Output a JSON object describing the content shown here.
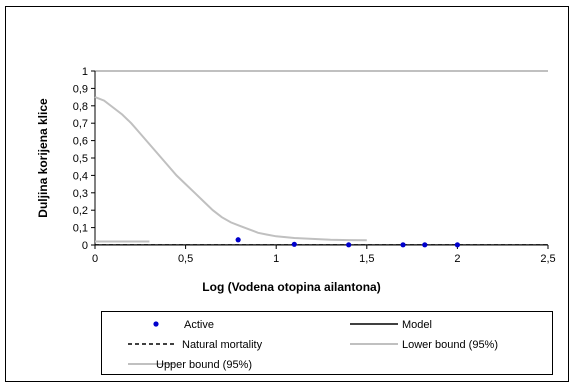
{
  "chart_data": {
    "type": "scatter",
    "xlabel": "Log (Vodena otopina ailantona)",
    "ylabel": "Duljina korijena klice",
    "xlim": [
      0,
      2.5
    ],
    "ylim": [
      0,
      1
    ],
    "x_ticks": [
      "0",
      "0,5",
      "1",
      "1,5",
      "2",
      "2,5"
    ],
    "y_ticks": [
      "0",
      "0,1",
      "0,2",
      "0,3",
      "0,4",
      "0,5",
      "0,6",
      "0,7",
      "0,8",
      "0,9",
      "1"
    ],
    "grid": "horizontal line at y=1",
    "legend_position": "bottom",
    "series": [
      {
        "name": "Active",
        "kind": "points",
        "color": "#0000cc",
        "x": [
          0.79,
          1.1,
          1.4,
          1.7,
          1.82,
          2.0
        ],
        "y": [
          0.03,
          0.004,
          0.001,
          0.001,
          0.001,
          0.001
        ]
      },
      {
        "name": "Model",
        "kind": "line",
        "color": "#000000",
        "x": [
          0,
          2.5
        ],
        "y": [
          0.001,
          0.001
        ]
      },
      {
        "name": "Natural mortality",
        "kind": "dashed-line",
        "color": "#000000",
        "x": [
          0,
          2.5
        ],
        "y": [
          0.001,
          0.001
        ]
      },
      {
        "name": "Lower bound (95%)",
        "kind": "line",
        "color": "#c0c0c0",
        "x": [
          0,
          0.3
        ],
        "y": [
          0.02,
          0.02
        ]
      },
      {
        "name": "Upper bound (95%)",
        "kind": "line",
        "color": "#c0c0c0",
        "x": [
          0,
          0.05,
          0.1,
          0.15,
          0.2,
          0.25,
          0.3,
          0.35,
          0.4,
          0.45,
          0.5,
          0.55,
          0.6,
          0.65,
          0.7,
          0.75,
          0.8,
          0.85,
          0.9,
          0.95,
          1.0,
          1.1,
          1.2,
          1.3,
          1.4,
          1.5
        ],
        "y": [
          0.85,
          0.83,
          0.79,
          0.75,
          0.7,
          0.64,
          0.58,
          0.52,
          0.46,
          0.4,
          0.35,
          0.3,
          0.25,
          0.2,
          0.16,
          0.13,
          0.11,
          0.09,
          0.07,
          0.06,
          0.05,
          0.04,
          0.035,
          0.03,
          0.028,
          0.027
        ]
      }
    ]
  },
  "legend": {
    "items": [
      {
        "label": "Active",
        "kind": "point",
        "color": "#0000cc"
      },
      {
        "label": "Model",
        "kind": "line",
        "color": "#000000"
      },
      {
        "label": "Natural mortality",
        "kind": "dashed",
        "color": "#000000"
      },
      {
        "label": "Lower bound (95%)",
        "kind": "line",
        "color": "#c0c0c0"
      },
      {
        "label": "Upper bound (95%)",
        "kind": "line",
        "color": "#c0c0c0"
      }
    ]
  }
}
